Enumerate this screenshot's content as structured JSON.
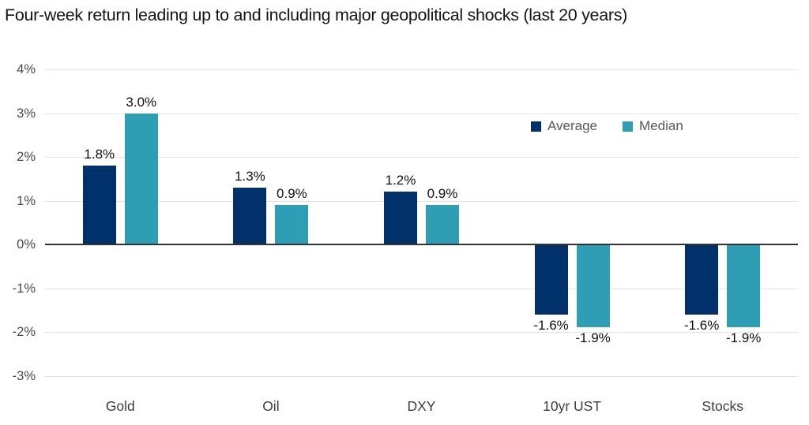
{
  "title": "Four-week return leading up to and including major geopolitical shocks (last 20 years)",
  "chart_data": {
    "type": "bar",
    "title": "Four-week return leading up to and including major geopolitical shocks (last 20 years)",
    "categories": [
      "Gold",
      "Oil",
      "DXY",
      "10yr UST",
      "Stocks"
    ],
    "series": [
      {
        "name": "Average",
        "color": "#00316b",
        "values": [
          1.8,
          1.3,
          1.2,
          -1.6,
          -1.6
        ],
        "labels": [
          "1.8%",
          "1.3%",
          "1.2%",
          "-1.6%",
          "-1.6%"
        ]
      },
      {
        "name": "Median",
        "color": "#2f9db3",
        "values": [
          3.0,
          0.9,
          0.9,
          -1.9,
          -1.9
        ],
        "labels": [
          "3.0%",
          "0.9%",
          "0.9%",
          "-1.9%",
          "-1.9%"
        ]
      }
    ],
    "xlabel": "",
    "ylabel": "",
    "ylim": [
      -3,
      4
    ],
    "yticks": [
      {
        "value": 4,
        "label": "4%"
      },
      {
        "value": 3,
        "label": "3%"
      },
      {
        "value": 2,
        "label": "2%"
      },
      {
        "value": 1,
        "label": "1%"
      },
      {
        "value": 0,
        "label": "0%"
      },
      {
        "value": -1,
        "label": "-1%"
      },
      {
        "value": -2,
        "label": "-2%"
      },
      {
        "value": -3,
        "label": "-3%"
      }
    ],
    "grid": true,
    "legend_position": "top-right"
  },
  "colors": {
    "average": "#00316b",
    "median": "#2f9db3",
    "gridline": "#e2e2e2",
    "zero_line": "#333333",
    "title_text": "#141414",
    "tick_text": "#4a4a4a",
    "category_text": "#3c3c3c",
    "legend_text": "#595959",
    "background": "#ffffff"
  }
}
